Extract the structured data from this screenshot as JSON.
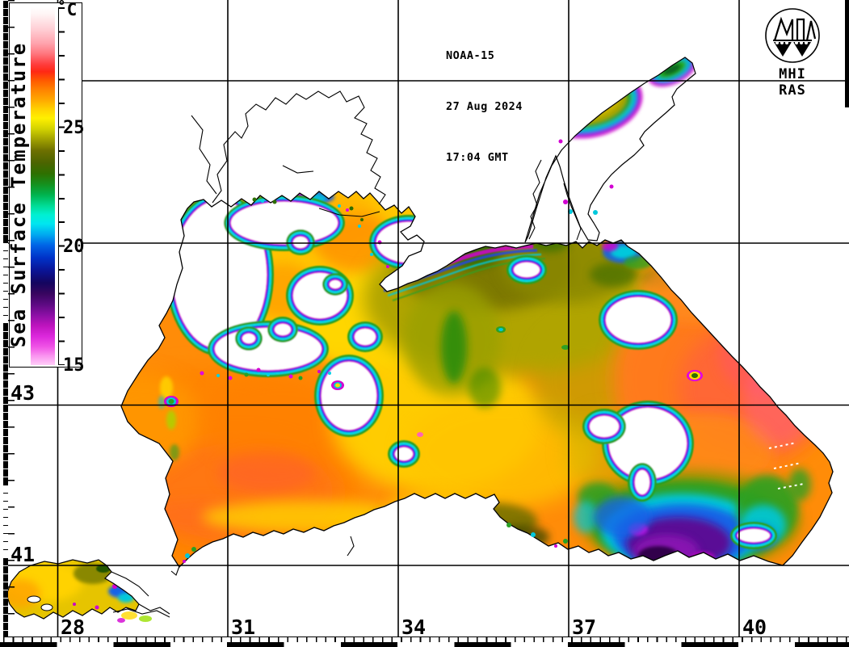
{
  "header": {
    "line1": "NOAA-15",
    "line2": "27 Aug 2024",
    "line3": "17:04 GMT"
  },
  "logo": {
    "caption": "MHI RAS"
  },
  "colorbar": {
    "unit": "˚C",
    "title": "Sea Surface Temperature",
    "tick_labels": {
      "t25": "25",
      "t20": "20",
      "t15": "15"
    },
    "scale_min_c": 15,
    "scale_max_c": 30,
    "palette_top_to_bottom": [
      "#ffffff",
      "#ffa4ae",
      "#ff3c3c",
      "#ff5a00",
      "#ffaa00",
      "#fff000",
      "#a0a000",
      "#4b6400",
      "#14911e",
      "#00dc96",
      "#00e6f0",
      "#0064e6",
      "#0a1496",
      "#38055f",
      "#8c0fa5",
      "#dc28dc",
      "#fa96f0",
      "#ffcdf8"
    ]
  },
  "graticule": {
    "lon_labels": [
      "28",
      "31",
      "34",
      "37",
      "40"
    ],
    "lat_labels": [
      "43",
      "41"
    ]
  },
  "colors": {
    "sea_warm_base": "#ff8c08",
    "olive_center": "#b0a400",
    "cold_eddy_core": "#5a0a96",
    "cloud_fringe_magenta": "#d200d2",
    "cloud_fringe_blue": "#2038e6",
    "cloud_fringe_cyan": "#00dce6",
    "cloud_fringe_green": "#28a024",
    "land": "#ffffff",
    "grid": "#000000"
  }
}
